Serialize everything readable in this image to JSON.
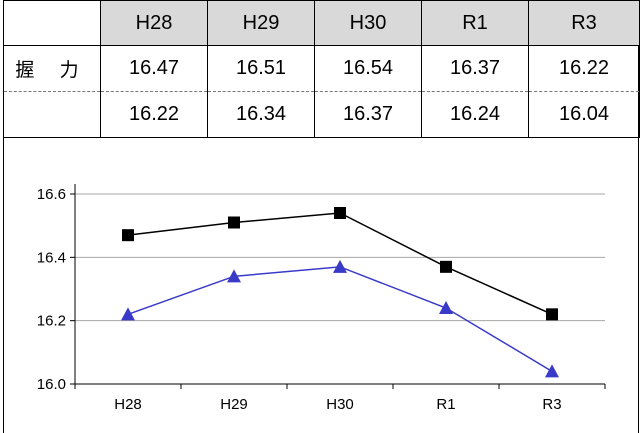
{
  "table": {
    "headers": [
      "H28",
      "H29",
      "H30",
      "R1",
      "R3"
    ],
    "row_label": "握 力",
    "rows": [
      [
        "16.47",
        "16.51",
        "16.54",
        "16.37",
        "16.22"
      ],
      [
        "16.22",
        "16.34",
        "16.37",
        "16.24",
        "16.04"
      ]
    ]
  },
  "chart_data": {
    "type": "line",
    "categories": [
      "H28",
      "H29",
      "H30",
      "R1",
      "R3"
    ],
    "series": [
      {
        "values": [
          16.47,
          16.51,
          16.54,
          16.37,
          16.22
        ],
        "color": "#000000",
        "marker": "square"
      },
      {
        "values": [
          16.22,
          16.34,
          16.37,
          16.24,
          16.04
        ],
        "color": "#3a3ac8",
        "marker": "triangle"
      }
    ],
    "ylim": [
      16.0,
      16.6
    ],
    "yticks": [
      "16.0",
      "16.2",
      "16.4",
      "16.6"
    ],
    "grid": true,
    "title": "",
    "xlabel": "",
    "ylabel": ""
  }
}
